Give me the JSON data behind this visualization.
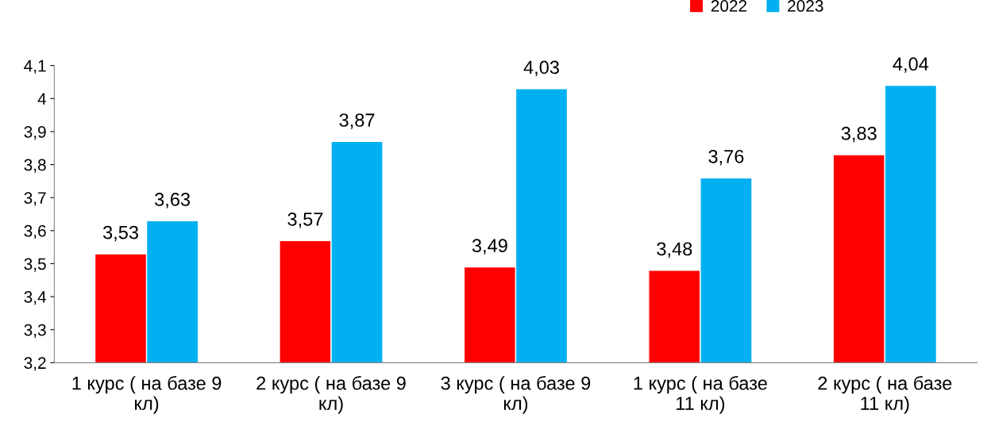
{
  "chart_data": {
    "type": "bar",
    "categories": [
      "1 курс ( на базе 9\nкл)",
      "2 курс ( на базе 9\nкл)",
      "3 курс ( на базе 9\nкл)",
      "1 курс ( на базе\n11 кл)",
      "2 курс ( на базе\n11 кл)"
    ],
    "series": [
      {
        "name": "2022",
        "color": "#ff0000",
        "values": [
          3.53,
          3.57,
          3.49,
          3.48,
          3.83
        ],
        "value_labels": [
          "3,53",
          "3,57",
          "3,49",
          "3,48",
          "3,83"
        ]
      },
      {
        "name": "2023",
        "color": "#00b0f0",
        "values": [
          3.63,
          3.87,
          4.03,
          3.76,
          4.04
        ],
        "value_labels": [
          "3,63",
          "3,87",
          "4,03",
          "3,76",
          "4,04"
        ]
      }
    ],
    "ylim": [
      3.2,
      4.1
    ],
    "yticks": [
      {
        "value": 3.2,
        "label": "3,2"
      },
      {
        "value": 3.3,
        "label": "3,3"
      },
      {
        "value": 3.4,
        "label": "3,4"
      },
      {
        "value": 3.5,
        "label": "3,5"
      },
      {
        "value": 3.6,
        "label": "3,6"
      },
      {
        "value": 3.7,
        "label": "3,7"
      },
      {
        "value": 3.8,
        "label": "3,8"
      },
      {
        "value": 3.9,
        "label": "3,9"
      },
      {
        "value": 4.0,
        "label": "4"
      },
      {
        "value": 4.1,
        "label": "4,1"
      }
    ],
    "grid": false,
    "legend": "top right"
  }
}
